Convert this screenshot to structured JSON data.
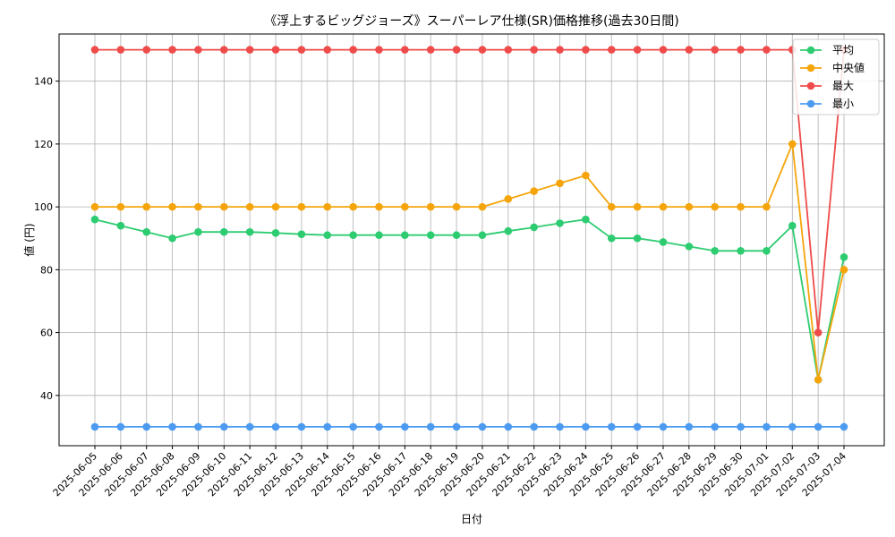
{
  "chart_data": {
    "type": "line",
    "title": "《浮上するビッグジョーズ》スーパーレア仕様(SR)価格推移(過去30日間)",
    "xlabel": "日付",
    "ylabel": "値 (円)",
    "ylim": [
      24,
      155
    ],
    "yticks": [
      40,
      60,
      80,
      100,
      120,
      140
    ],
    "grid": true,
    "legend_position": "top-right",
    "categories": [
      "2025-06-05",
      "2025-06-06",
      "2025-06-07",
      "2025-06-08",
      "2025-06-09",
      "2025-06-10",
      "2025-06-11",
      "2025-06-12",
      "2025-06-13",
      "2025-06-14",
      "2025-06-15",
      "2025-06-16",
      "2025-06-17",
      "2025-06-18",
      "2025-06-19",
      "2025-06-20",
      "2025-06-21",
      "2025-06-22",
      "2025-06-23",
      "2025-06-24",
      "2025-06-25",
      "2025-06-26",
      "2025-06-27",
      "2025-06-28",
      "2025-06-29",
      "2025-06-30",
      "2025-07-01",
      "2025-07-02",
      "2025-07-03",
      "2025-07-04"
    ],
    "series": [
      {
        "name": "平均",
        "color": "#2ecc71",
        "values": [
          96,
          94,
          92,
          90,
          92,
          92,
          92,
          91.7,
          91.3,
          91,
          91,
          91,
          91,
          91,
          91,
          91,
          92.3,
          93.5,
          94.8,
          96,
          90,
          90,
          88.8,
          87.4,
          86,
          86,
          86,
          94,
          45,
          84
        ]
      },
      {
        "name": "中央値",
        "color": "#f5a50b",
        "values": [
          100,
          100,
          100,
          100,
          100,
          100,
          100,
          100,
          100,
          100,
          100,
          100,
          100,
          100,
          100,
          100,
          102.5,
          105,
          107.5,
          110,
          100,
          100,
          100,
          100,
          100,
          100,
          100,
          120,
          45,
          80
        ]
      },
      {
        "name": "最大",
        "color": "#ef4b4b",
        "values": [
          150,
          150,
          150,
          150,
          150,
          150,
          150,
          150,
          150,
          150,
          150,
          150,
          150,
          150,
          150,
          150,
          150,
          150,
          150,
          150,
          150,
          150,
          150,
          150,
          150,
          150,
          150,
          150,
          60,
          150
        ]
      },
      {
        "name": "最小",
        "color": "#4c9bf0",
        "values": [
          30,
          30,
          30,
          30,
          30,
          30,
          30,
          30,
          30,
          30,
          30,
          30,
          30,
          30,
          30,
          30,
          30,
          30,
          30,
          30,
          30,
          30,
          30,
          30,
          30,
          30,
          30,
          30,
          30,
          30
        ]
      }
    ]
  }
}
